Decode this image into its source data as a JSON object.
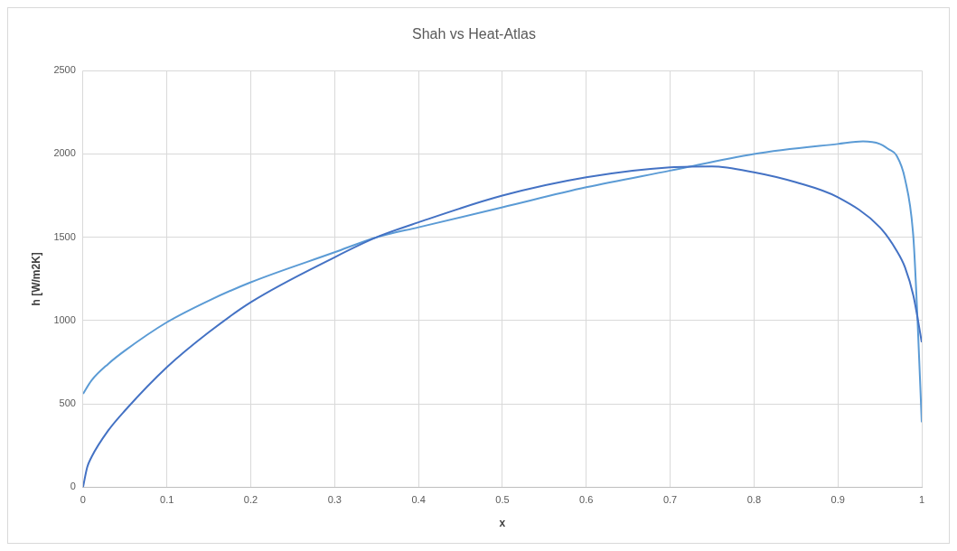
{
  "chart_data": {
    "type": "line",
    "title": "Shah vs Heat-Atlas",
    "xlabel": "x",
    "ylabel": "h [W/m2K]",
    "xlim": [
      0,
      1
    ],
    "xticks": [
      0,
      0.1,
      0.2,
      0.3,
      0.4,
      0.5,
      0.6,
      0.7,
      0.8,
      0.9,
      1
    ],
    "ylim": [
      0,
      2500
    ],
    "yticks": [
      0,
      500,
      1000,
      1500,
      2000,
      2500
    ],
    "grid": true,
    "legend": false,
    "marker": "none",
    "line_style": "solid",
    "series": [
      {
        "color": "#4472c4",
        "x": [
          0,
          0.005,
          0.01,
          0.03,
          0.05,
          0.1,
          0.15,
          0.2,
          0.3,
          0.35,
          0.4,
          0.5,
          0.6,
          0.7,
          0.75,
          0.8,
          0.85,
          0.9,
          0.95,
          0.97,
          0.98,
          0.99,
          1
        ],
        "values": [
          0,
          120,
          180,
          340,
          460,
          720,
          930,
          1110,
          1380,
          1500,
          1590,
          1750,
          1860,
          1920,
          1925,
          1890,
          1830,
          1740,
          1560,
          1420,
          1320,
          1150,
          870
        ]
      },
      {
        "color": "#5b9bd5",
        "x": [
          0,
          0.01,
          0.03,
          0.05,
          0.1,
          0.15,
          0.2,
          0.3,
          0.35,
          0.4,
          0.5,
          0.6,
          0.7,
          0.8,
          0.9,
          0.93,
          0.95,
          0.96,
          0.97,
          0.98,
          0.99,
          0.995,
          1
        ],
        "values": [
          560,
          640,
          740,
          820,
          990,
          1120,
          1230,
          1410,
          1500,
          1560,
          1680,
          1800,
          1900,
          2000,
          2060,
          2075,
          2060,
          2030,
          1990,
          1850,
          1500,
          1000,
          390
        ]
      }
    ]
  }
}
